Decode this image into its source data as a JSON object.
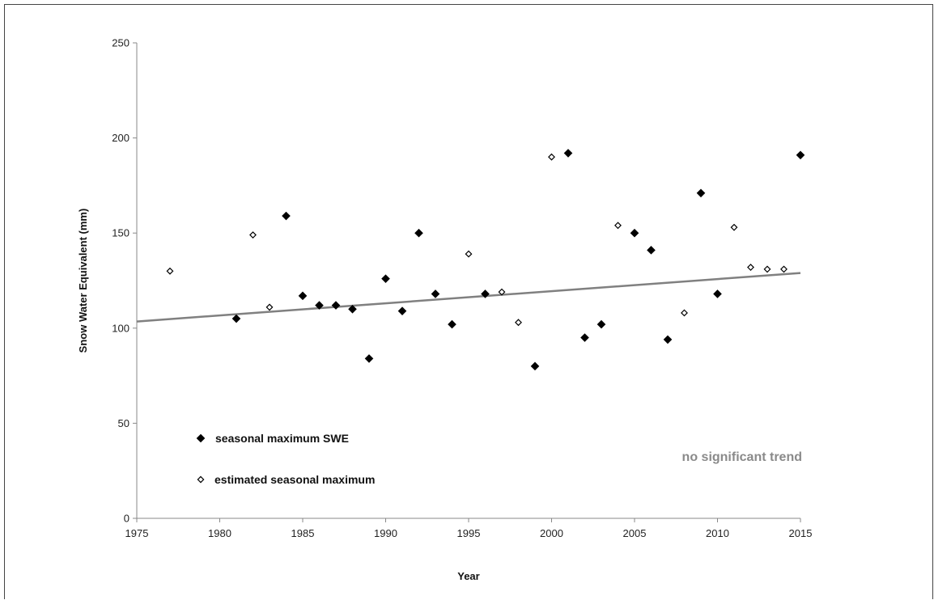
{
  "chart_data": {
    "type": "scatter",
    "xlabel": "Year",
    "ylabel": "Snow Water Equivalent (mm)",
    "xlim": [
      1975,
      2015
    ],
    "ylim": [
      0,
      250
    ],
    "xticks": [
      1975,
      1980,
      1985,
      1990,
      1995,
      2000,
      2005,
      2010,
      2015
    ],
    "yticks": [
      0,
      50,
      100,
      150,
      200,
      250
    ],
    "grid": false,
    "legend_position": "bottom-left",
    "series": [
      {
        "name": "seasonal maximum SWE",
        "marker": "filled-diamond",
        "color": "#000000",
        "x": [
          1981,
          1984,
          1985,
          1986,
          1987,
          1988,
          1989,
          1990,
          1991,
          1992,
          1993,
          1994,
          1996,
          1999,
          2001,
          2002,
          2003,
          2005,
          2006,
          2007,
          2009,
          2010,
          2015
        ],
        "y": [
          105,
          159,
          117,
          112,
          112,
          110,
          84,
          126,
          109,
          150,
          118,
          102,
          118,
          80,
          192,
          95,
          102,
          150,
          141,
          94,
          171,
          118,
          191
        ]
      },
      {
        "name": "estimated seasonal maximum",
        "marker": "open-diamond",
        "color": "#000000",
        "x": [
          1977,
          1982,
          1983,
          1995,
          1997,
          1998,
          2000,
          2004,
          2008,
          2011,
          2012,
          2013,
          2014
        ],
        "y": [
          130,
          149,
          111,
          139,
          119,
          103,
          190,
          154,
          108,
          153,
          132,
          131,
          131
        ]
      }
    ],
    "trendline": {
      "color": "#808080",
      "x": [
        1975,
        2015
      ],
      "y": [
        103.5,
        129
      ]
    },
    "annotation": {
      "text": "no significant trend",
      "color": "#8a8a8a"
    }
  }
}
